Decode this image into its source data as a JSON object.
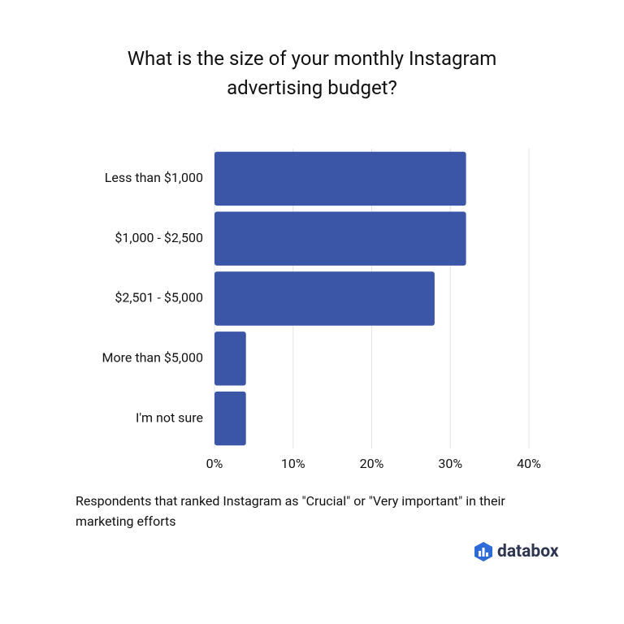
{
  "chart_data": {
    "type": "barh",
    "title": "What is the size of your monthly Instagram advertising budget?",
    "note": "Respondents that ranked Instagram as \"Crucial\" or \"Very important\" in their marketing efforts",
    "brand": "databox",
    "categories": [
      "Less than $1,000",
      "$1,000 - $2,500",
      "$2,501 - $5,000",
      "More than $5,000",
      "I'm not sure"
    ],
    "values": [
      32,
      32,
      28,
      4,
      4
    ],
    "color": "#3c56a7",
    "xlim": [
      0,
      40
    ],
    "xticks": [
      {
        "value": 0,
        "label": "0%"
      },
      {
        "value": 10,
        "label": "10%"
      },
      {
        "value": 20,
        "label": "20%"
      },
      {
        "value": 30,
        "label": "30%"
      },
      {
        "value": 40,
        "label": "40%"
      }
    ],
    "grid": true
  }
}
